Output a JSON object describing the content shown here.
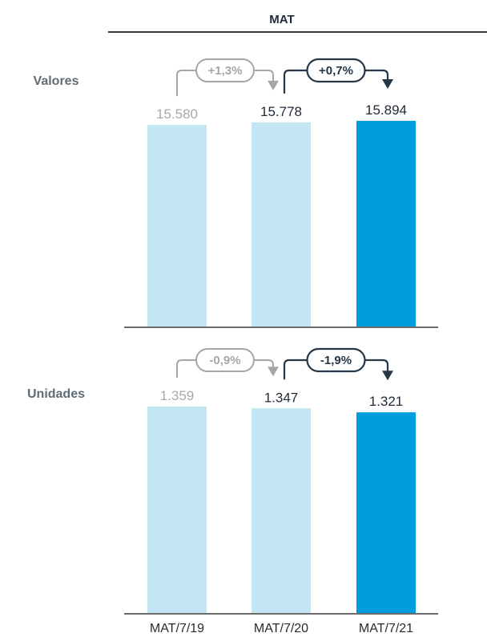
{
  "header": {
    "title": "MAT"
  },
  "colors": {
    "bar_light": "#c2e6f4",
    "bar_dark": "#009ddc",
    "text_grey": "#a9a9a9",
    "text_dark": "#1f2937",
    "arrow_grey": "#a6a6a6",
    "arrow_dark": "#253746"
  },
  "chart_data": [
    {
      "type": "bar",
      "row_label": "Valores",
      "categories": [
        "MAT/7/19",
        "MAT/7/20",
        "MAT/7/21"
      ],
      "values": [
        15580,
        15778,
        15894
      ],
      "value_labels": [
        "15.580",
        "15.778",
        "15.894"
      ],
      "changes": [
        {
          "from": 0,
          "to": 1,
          "label": "+1,3%"
        },
        {
          "from": 1,
          "to": 2,
          "label": "+0,7%"
        }
      ]
    },
    {
      "type": "bar",
      "row_label": "Unidades",
      "categories": [
        "MAT/7/19",
        "MAT/7/20",
        "MAT/7/21"
      ],
      "values": [
        1359,
        1347,
        1321
      ],
      "value_labels": [
        "1.359",
        "1.347",
        "1.321"
      ],
      "changes": [
        {
          "from": 0,
          "to": 1,
          "label": "-0,9%"
        },
        {
          "from": 1,
          "to": 2,
          "label": "-1,9%"
        }
      ]
    }
  ]
}
